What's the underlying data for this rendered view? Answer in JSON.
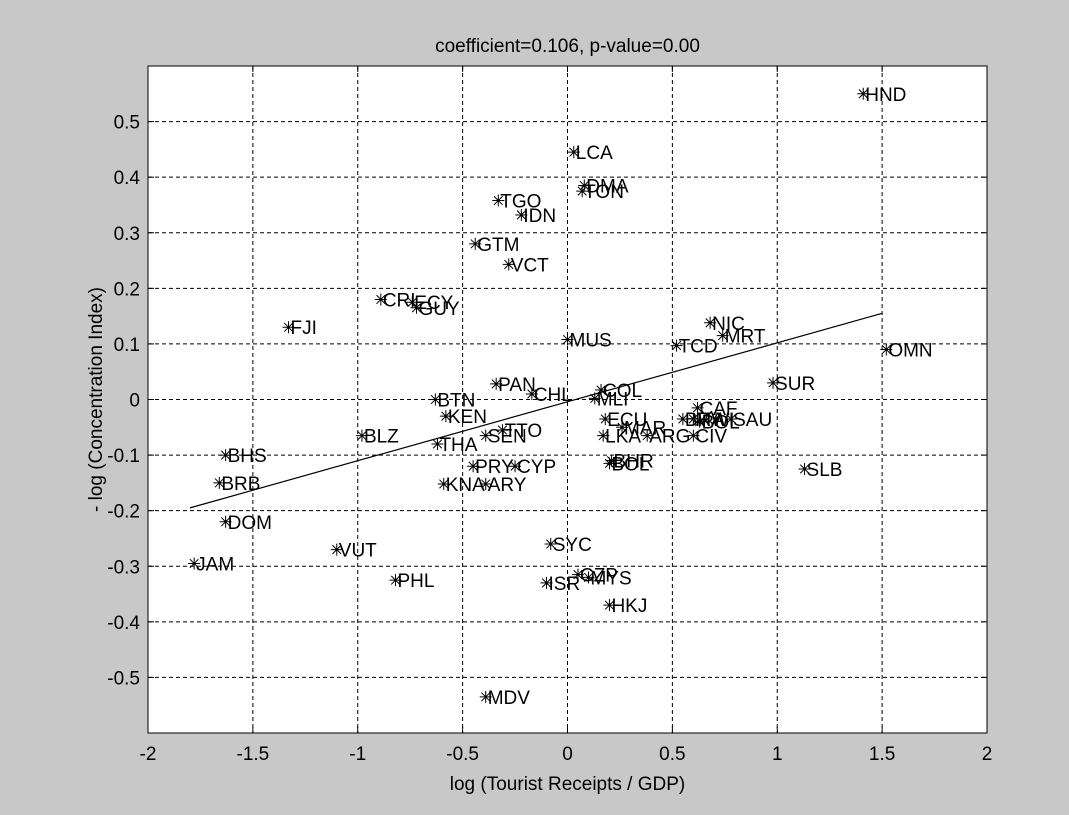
{
  "colors": {
    "figure_bg": "#c8c8c8",
    "axes_bg": "#ffffff",
    "ink": "#000000"
  },
  "chart_data": {
    "type": "scatter",
    "title": "coefficient=0.106, p-value=0.00",
    "xlabel": "log (Tourist Receipts / GDP)",
    "ylabel": "- log (Concentration Index)",
    "xlim": [
      -2,
      2
    ],
    "ylim": [
      -0.6,
      0.6
    ],
    "xticks": [
      -2,
      -1.5,
      -1,
      -0.5,
      0,
      0.5,
      1,
      1.5,
      2
    ],
    "xtick_labels": [
      "-2",
      "-1.5",
      "-1",
      "-0.5",
      "0",
      "0.5",
      "1",
      "1.5",
      "2"
    ],
    "yticks": [
      -0.5,
      -0.4,
      -0.3,
      -0.2,
      -0.1,
      0,
      0.1,
      0.2,
      0.3,
      0.4,
      0.5
    ],
    "ytick_labels": [
      "-0.5",
      "-0.4",
      "-0.3",
      "-0.2",
      "-0.1",
      "0",
      "0.1",
      "0.2",
      "0.3",
      "0.4",
      "0.5"
    ],
    "grid": true,
    "marker": "*",
    "points": [
      {
        "label": "HND",
        "x": 1.41,
        "y": 0.55
      },
      {
        "label": "LCA",
        "x": 0.03,
        "y": 0.445
      },
      {
        "label": "DMA",
        "x": 0.08,
        "y": 0.385
      },
      {
        "label": "TON",
        "x": 0.07,
        "y": 0.375
      },
      {
        "label": "TGO",
        "x": -0.33,
        "y": 0.358
      },
      {
        "label": "IDN",
        "x": -0.22,
        "y": 0.332
      },
      {
        "label": "GTM",
        "x": -0.44,
        "y": 0.28
      },
      {
        "label": "VCT",
        "x": -0.28,
        "y": 0.243
      },
      {
        "label": "CRI",
        "x": -0.89,
        "y": 0.18
      },
      {
        "label": "ECY",
        "x": -0.74,
        "y": 0.175
      },
      {
        "label": "GUY",
        "x": -0.72,
        "y": 0.165
      },
      {
        "label": "FJI",
        "x": -1.33,
        "y": 0.13
      },
      {
        "label": "MUS",
        "x": 0.0,
        "y": 0.108
      },
      {
        "label": "NIC",
        "x": 0.68,
        "y": 0.138
      },
      {
        "label": "MRT",
        "x": 0.74,
        "y": 0.115
      },
      {
        "label": "TCD",
        "x": 0.52,
        "y": 0.097
      },
      {
        "label": "OMN",
        "x": 1.52,
        "y": 0.09
      },
      {
        "label": "SUR",
        "x": 0.98,
        "y": 0.03
      },
      {
        "label": "PAN",
        "x": -0.34,
        "y": 0.028
      },
      {
        "label": "CHL",
        "x": -0.17,
        "y": 0.01
      },
      {
        "label": "COL",
        "x": 0.16,
        "y": 0.017
      },
      {
        "label": "MLI",
        "x": 0.13,
        "y": 0.002
      },
      {
        "label": "BTN",
        "x": -0.63,
        "y": 0.0
      },
      {
        "label": "KEN",
        "x": -0.58,
        "y": -0.03
      },
      {
        "label": "ECU",
        "x": 0.18,
        "y": -0.035
      },
      {
        "label": "CAF",
        "x": 0.62,
        "y": -0.015
      },
      {
        "label": "BRA",
        "x": 0.55,
        "y": -0.035
      },
      {
        "label": "MWI",
        "x": 0.6,
        "y": -0.035
      },
      {
        "label": "BOL",
        "x": 0.63,
        "y": -0.04
      },
      {
        "label": "SAU",
        "x": 0.78,
        "y": -0.035
      },
      {
        "label": "MAR",
        "x": 0.26,
        "y": -0.05
      },
      {
        "label": "TTO",
        "x": -0.31,
        "y": -0.055
      },
      {
        "label": "BLZ",
        "x": -0.98,
        "y": -0.065
      },
      {
        "label": "SEN",
        "x": -0.39,
        "y": -0.065
      },
      {
        "label": "LKA",
        "x": 0.17,
        "y": -0.065
      },
      {
        "label": "ARG",
        "x": 0.38,
        "y": -0.065
      },
      {
        "label": "CIV",
        "x": 0.6,
        "y": -0.065
      },
      {
        "label": "THA",
        "x": -0.62,
        "y": -0.08
      },
      {
        "label": "BHS",
        "x": -1.63,
        "y": -0.1
      },
      {
        "label": "BHR",
        "x": 0.21,
        "y": -0.11
      },
      {
        "label": "BOL",
        "x": 0.2,
        "y": -0.115
      },
      {
        "label": "PRY",
        "x": -0.45,
        "y": -0.12
      },
      {
        "label": "CYP",
        "x": -0.25,
        "y": -0.12
      },
      {
        "label": "SLB",
        "x": 1.13,
        "y": -0.125
      },
      {
        "label": "BRB",
        "x": -1.66,
        "y": -0.15
      },
      {
        "label": "KNA",
        "x": -0.59,
        "y": -0.152
      },
      {
        "label": "ARY",
        "x": -0.39,
        "y": -0.152
      },
      {
        "label": "DOM",
        "x": -1.63,
        "y": -0.22
      },
      {
        "label": "VUT",
        "x": -1.1,
        "y": -0.27
      },
      {
        "label": "SYC",
        "x": -0.08,
        "y": -0.26
      },
      {
        "label": "JAM",
        "x": -1.78,
        "y": -0.295
      },
      {
        "label": "CZP",
        "x": 0.05,
        "y": -0.315
      },
      {
        "label": "MYS",
        "x": 0.1,
        "y": -0.32
      },
      {
        "label": "PHL",
        "x": -0.82,
        "y": -0.325
      },
      {
        "label": "ISR",
        "x": -0.1,
        "y": -0.33
      },
      {
        "label": "HKJ",
        "x": 0.2,
        "y": -0.37
      },
      {
        "label": "MDV",
        "x": -0.39,
        "y": -0.535
      }
    ],
    "fit_line": {
      "x": [
        -1.8,
        1.5
      ],
      "y": [
        -0.195,
        0.155
      ]
    }
  }
}
